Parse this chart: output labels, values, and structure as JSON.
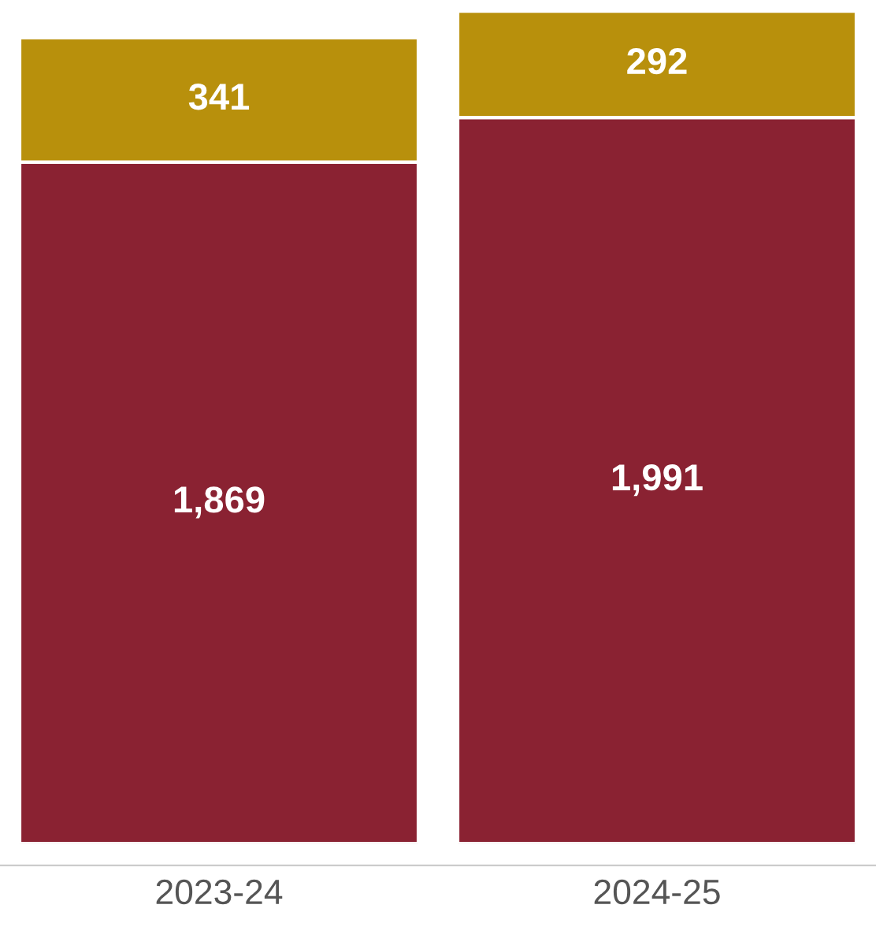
{
  "chart_data": {
    "type": "bar",
    "stacked": true,
    "categories": [
      "2023-24",
      "2024-25"
    ],
    "series": [
      {
        "color": "#8a2232",
        "values": [
          1869,
          1991
        ],
        "value_labels": [
          "1,869",
          "1,991"
        ]
      },
      {
        "color": "#b8900c",
        "values": [
          341,
          292
        ],
        "value_labels": [
          "341",
          "292"
        ]
      }
    ],
    "tick_labels": "x",
    "grid": false,
    "legend": false
  }
}
